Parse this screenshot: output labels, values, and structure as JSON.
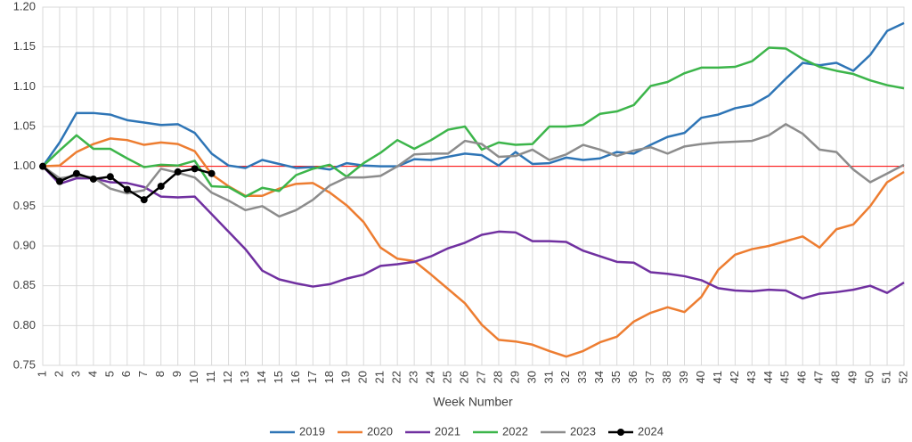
{
  "chart_data": {
    "type": "line",
    "x_label": "Week Number",
    "categories": [
      "1",
      "2",
      "3",
      "4",
      "5",
      "6",
      "7",
      "8",
      "9",
      "10",
      "11",
      "12",
      "13",
      "14",
      "15",
      "16",
      "17",
      "18",
      "19",
      "20",
      "21",
      "22",
      "23",
      "24",
      "25",
      "26",
      "27",
      "28",
      "29",
      "30",
      "31",
      "32",
      "33",
      "34",
      "35",
      "36",
      "37",
      "38",
      "39",
      "40",
      "41",
      "42",
      "43",
      "44",
      "45",
      "46",
      "47",
      "48",
      "49",
      "50",
      "51",
      "52"
    ],
    "ylim": [
      0.75,
      1.2
    ],
    "yticks": [
      0.75,
      {
        "value": 0.8,
        "label": "0.80"
      },
      0.85,
      {
        "value": 0.9,
        "label": "0.90"
      },
      0.95,
      {
        "value": 1.0,
        "label": "1.00"
      },
      1.05,
      {
        "value": 1.1,
        "label": "1.10"
      },
      1.15,
      {
        "value": 1.2,
        "label": "1.20"
      }
    ],
    "grid": true,
    "legend": "bottom",
    "reference_line": {
      "value": 1.0,
      "color": "#ff0000"
    },
    "series": [
      {
        "name": "2019",
        "color": "#2e75b6",
        "values": [
          1.0,
          1.03,
          1.067,
          1.067,
          1.065,
          1.058,
          1.055,
          1.052,
          1.053,
          1.042,
          1.016,
          1.001,
          0.998,
          1.008,
          1.003,
          0.998,
          0.999,
          0.996,
          1.004,
          1.001,
          1.0,
          1.0,
          1.009,
          1.008,
          1.012,
          1.016,
          1.014,
          1.001,
          1.018,
          1.003,
          1.004,
          1.011,
          1.008,
          1.01,
          1.018,
          1.016,
          1.027,
          1.037,
          1.042,
          1.061,
          1.065,
          1.073,
          1.077,
          1.089,
          1.11,
          1.13,
          1.127,
          1.13,
          1.12,
          1.14,
          1.17,
          1.18
        ]
      },
      {
        "name": "2020",
        "color": "#ed7d31",
        "values": [
          1.0,
          1.001,
          1.018,
          1.028,
          1.035,
          1.033,
          1.027,
          1.03,
          1.028,
          1.019,
          0.99,
          0.975,
          0.963,
          0.963,
          0.972,
          0.978,
          0.979,
          0.967,
          0.951,
          0.93,
          0.898,
          0.884,
          0.881,
          0.864,
          0.846,
          0.828,
          0.801,
          0.782,
          0.78,
          0.776,
          0.768,
          0.761,
          0.768,
          0.779,
          0.786,
          0.805,
          0.816,
          0.823,
          0.817,
          0.836,
          0.87,
          0.889,
          0.896,
          0.9,
          0.906,
          0.912,
          0.898,
          0.921,
          0.927,
          0.95,
          0.98,
          0.993
        ]
      },
      {
        "name": "2021",
        "color": "#7030a0",
        "values": [
          1.0,
          0.978,
          0.985,
          0.985,
          0.98,
          0.979,
          0.974,
          0.962,
          0.961,
          0.962,
          0.94,
          0.918,
          0.896,
          0.869,
          0.858,
          0.853,
          0.849,
          0.852,
          0.859,
          0.864,
          0.875,
          0.877,
          0.88,
          0.887,
          0.897,
          0.904,
          0.914,
          0.918,
          0.917,
          0.906,
          0.906,
          0.905,
          0.894,
          0.887,
          0.88,
          0.879,
          0.867,
          0.865,
          0.862,
          0.857,
          0.847,
          0.844,
          0.843,
          0.845,
          0.844,
          0.834,
          0.84,
          0.842,
          0.845,
          0.85,
          0.841,
          0.854
        ]
      },
      {
        "name": "2022",
        "color": "#3cb54a",
        "values": [
          1.0,
          1.02,
          1.039,
          1.022,
          1.022,
          1.01,
          0.999,
          1.002,
          1.001,
          1.007,
          0.975,
          0.974,
          0.962,
          0.973,
          0.969,
          0.989,
          0.997,
          1.002,
          0.987,
          1.004,
          1.017,
          1.033,
          1.022,
          1.033,
          1.046,
          1.05,
          1.021,
          1.03,
          1.027,
          1.028,
          1.05,
          1.05,
          1.052,
          1.066,
          1.069,
          1.077,
          1.101,
          1.106,
          1.117,
          1.124,
          1.124,
          1.125,
          1.132,
          1.149,
          1.148,
          1.135,
          1.125,
          1.12,
          1.116,
          1.108,
          1.102,
          1.098
        ]
      },
      {
        "name": "2023",
        "color": "#8c8c8c",
        "values": [
          1.0,
          0.985,
          0.988,
          0.986,
          0.972,
          0.966,
          0.97,
          0.997,
          0.992,
          0.986,
          0.967,
          0.957,
          0.945,
          0.95,
          0.937,
          0.945,
          0.958,
          0.976,
          0.986,
          0.986,
          0.988,
          1.0,
          1.015,
          1.016,
          1.016,
          1.032,
          1.028,
          1.012,
          1.013,
          1.021,
          1.008,
          1.015,
          1.027,
          1.021,
          1.013,
          1.02,
          1.024,
          1.016,
          1.025,
          1.028,
          1.03,
          1.031,
          1.032,
          1.039,
          1.053,
          1.041,
          1.021,
          1.018,
          0.996,
          0.98,
          0.991,
          1.002
        ]
      },
      {
        "name": "2024",
        "color": "#000000",
        "markers": true,
        "values": [
          1.0,
          0.981,
          0.991,
          0.984,
          0.987,
          0.971,
          0.958,
          0.975,
          0.993,
          0.997,
          0.991,
          null,
          null,
          null,
          null,
          null,
          null,
          null,
          null,
          null,
          null,
          null,
          null,
          null,
          null,
          null,
          null,
          null,
          null,
          null,
          null,
          null,
          null,
          null,
          null,
          null,
          null,
          null,
          null,
          null,
          null,
          null,
          null,
          null,
          null,
          null,
          null,
          null,
          null,
          null,
          null,
          null
        ]
      }
    ]
  }
}
